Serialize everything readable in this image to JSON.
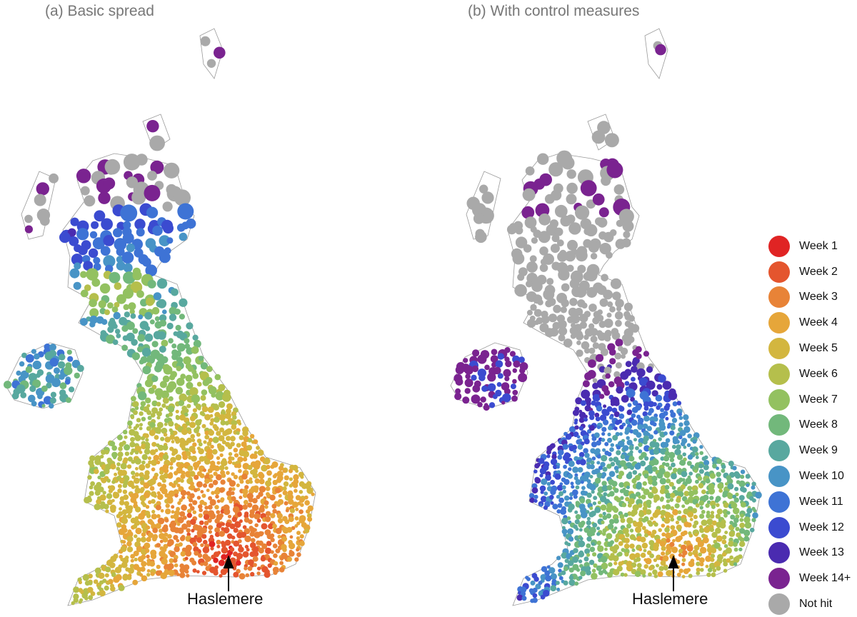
{
  "panels": [
    {
      "title": "(a) Basic spread",
      "marker_label": "Haslemere"
    },
    {
      "title": "(b) With control measures",
      "marker_label": "Haslemere"
    }
  ],
  "legend": [
    {
      "label": "Week 1",
      "color": "#e02424"
    },
    {
      "label": "Week 2",
      "color": "#e4552e"
    },
    {
      "label": "Week 3",
      "color": "#e88337"
    },
    {
      "label": "Week 4",
      "color": "#e6a63a"
    },
    {
      "label": "Week 5",
      "color": "#d3b63f"
    },
    {
      "label": "Week 6",
      "color": "#b5bf4c"
    },
    {
      "label": "Week 7",
      "color": "#93c160"
    },
    {
      "label": "Week 8",
      "color": "#72b87b"
    },
    {
      "label": "Week 9",
      "color": "#58a89f"
    },
    {
      "label": "Week 10",
      "color": "#4894c6"
    },
    {
      "label": "Week 11",
      "color": "#3e73d5"
    },
    {
      "label": "Week 12",
      "color": "#3b4bd0"
    },
    {
      "label": "Week 13",
      "color": "#4a2bb0"
    },
    {
      "label": "Week 14+",
      "color": "#7a2390"
    },
    {
      "label": "Not hit",
      "color": "#a9a9a9"
    }
  ]
}
